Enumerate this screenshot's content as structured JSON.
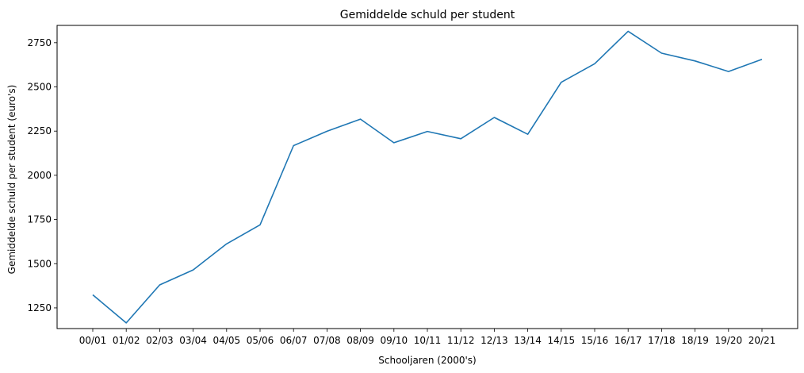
{
  "chart_data": {
    "type": "line",
    "title": "Gemiddelde schuld per student",
    "xlabel": "Schooljaren (2000's)",
    "ylabel": "Gemiddelde schuld per student (euro's)",
    "categories": [
      "00/01",
      "01/02",
      "02/03",
      "03/04",
      "04/05",
      "05/06",
      "06/07",
      "07/08",
      "08/09",
      "09/10",
      "10/11",
      "11/12",
      "12/13",
      "13/14",
      "14/15",
      "15/16",
      "16/17",
      "17/18",
      "18/19",
      "19/20",
      "20/21"
    ],
    "series": [
      {
        "values": [
          1324,
          1165,
          1380,
          1465,
          1612,
          1720,
          2168,
          2249,
          2318,
          2184,
          2248,
          2207,
          2327,
          2232,
          2526,
          2631,
          2815,
          2691,
          2647,
          2587,
          2656
        ],
        "color": "#1f77b4"
      }
    ],
    "yticks": [
      1250,
      1500,
      1750,
      2000,
      2250,
      2500,
      2750
    ],
    "ylim": [
      1133,
      2848
    ],
    "grid": false
  }
}
